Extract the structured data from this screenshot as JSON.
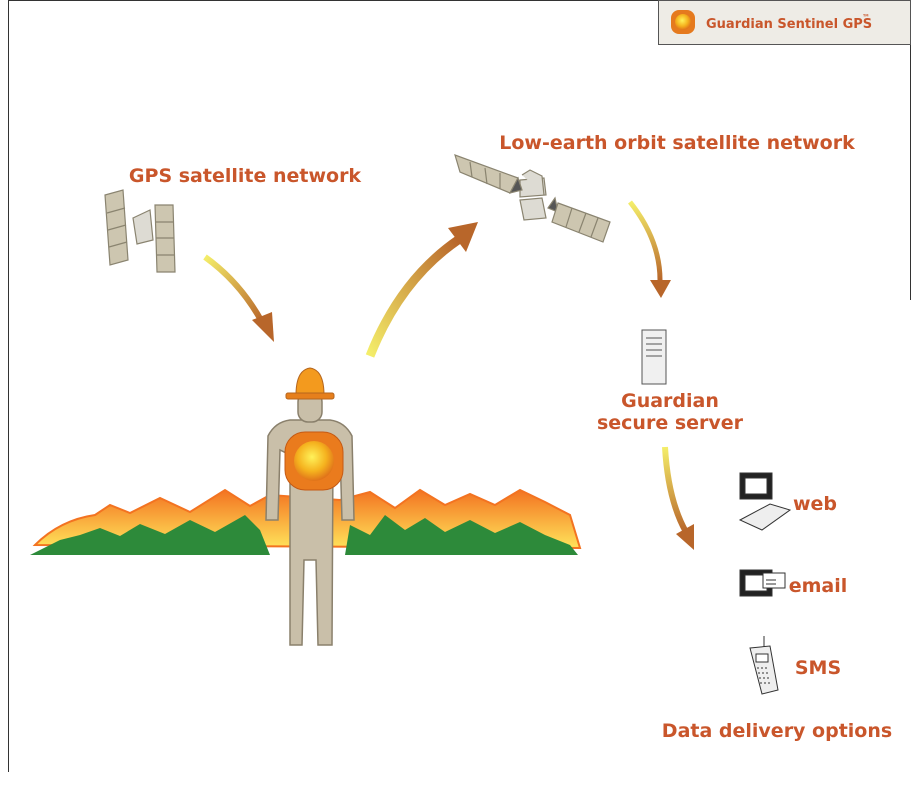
{
  "badge": {
    "name": "Guardian Sentinel GPS",
    "mark": "™"
  },
  "labels": {
    "gps": "GPS satellite network",
    "leo": "Low-earth orbit satellite network",
    "server": [
      "Guardian",
      "secure server"
    ]
  },
  "delivery": {
    "options": [
      "web",
      "email",
      "SMS"
    ],
    "title": "Data delivery options"
  }
}
